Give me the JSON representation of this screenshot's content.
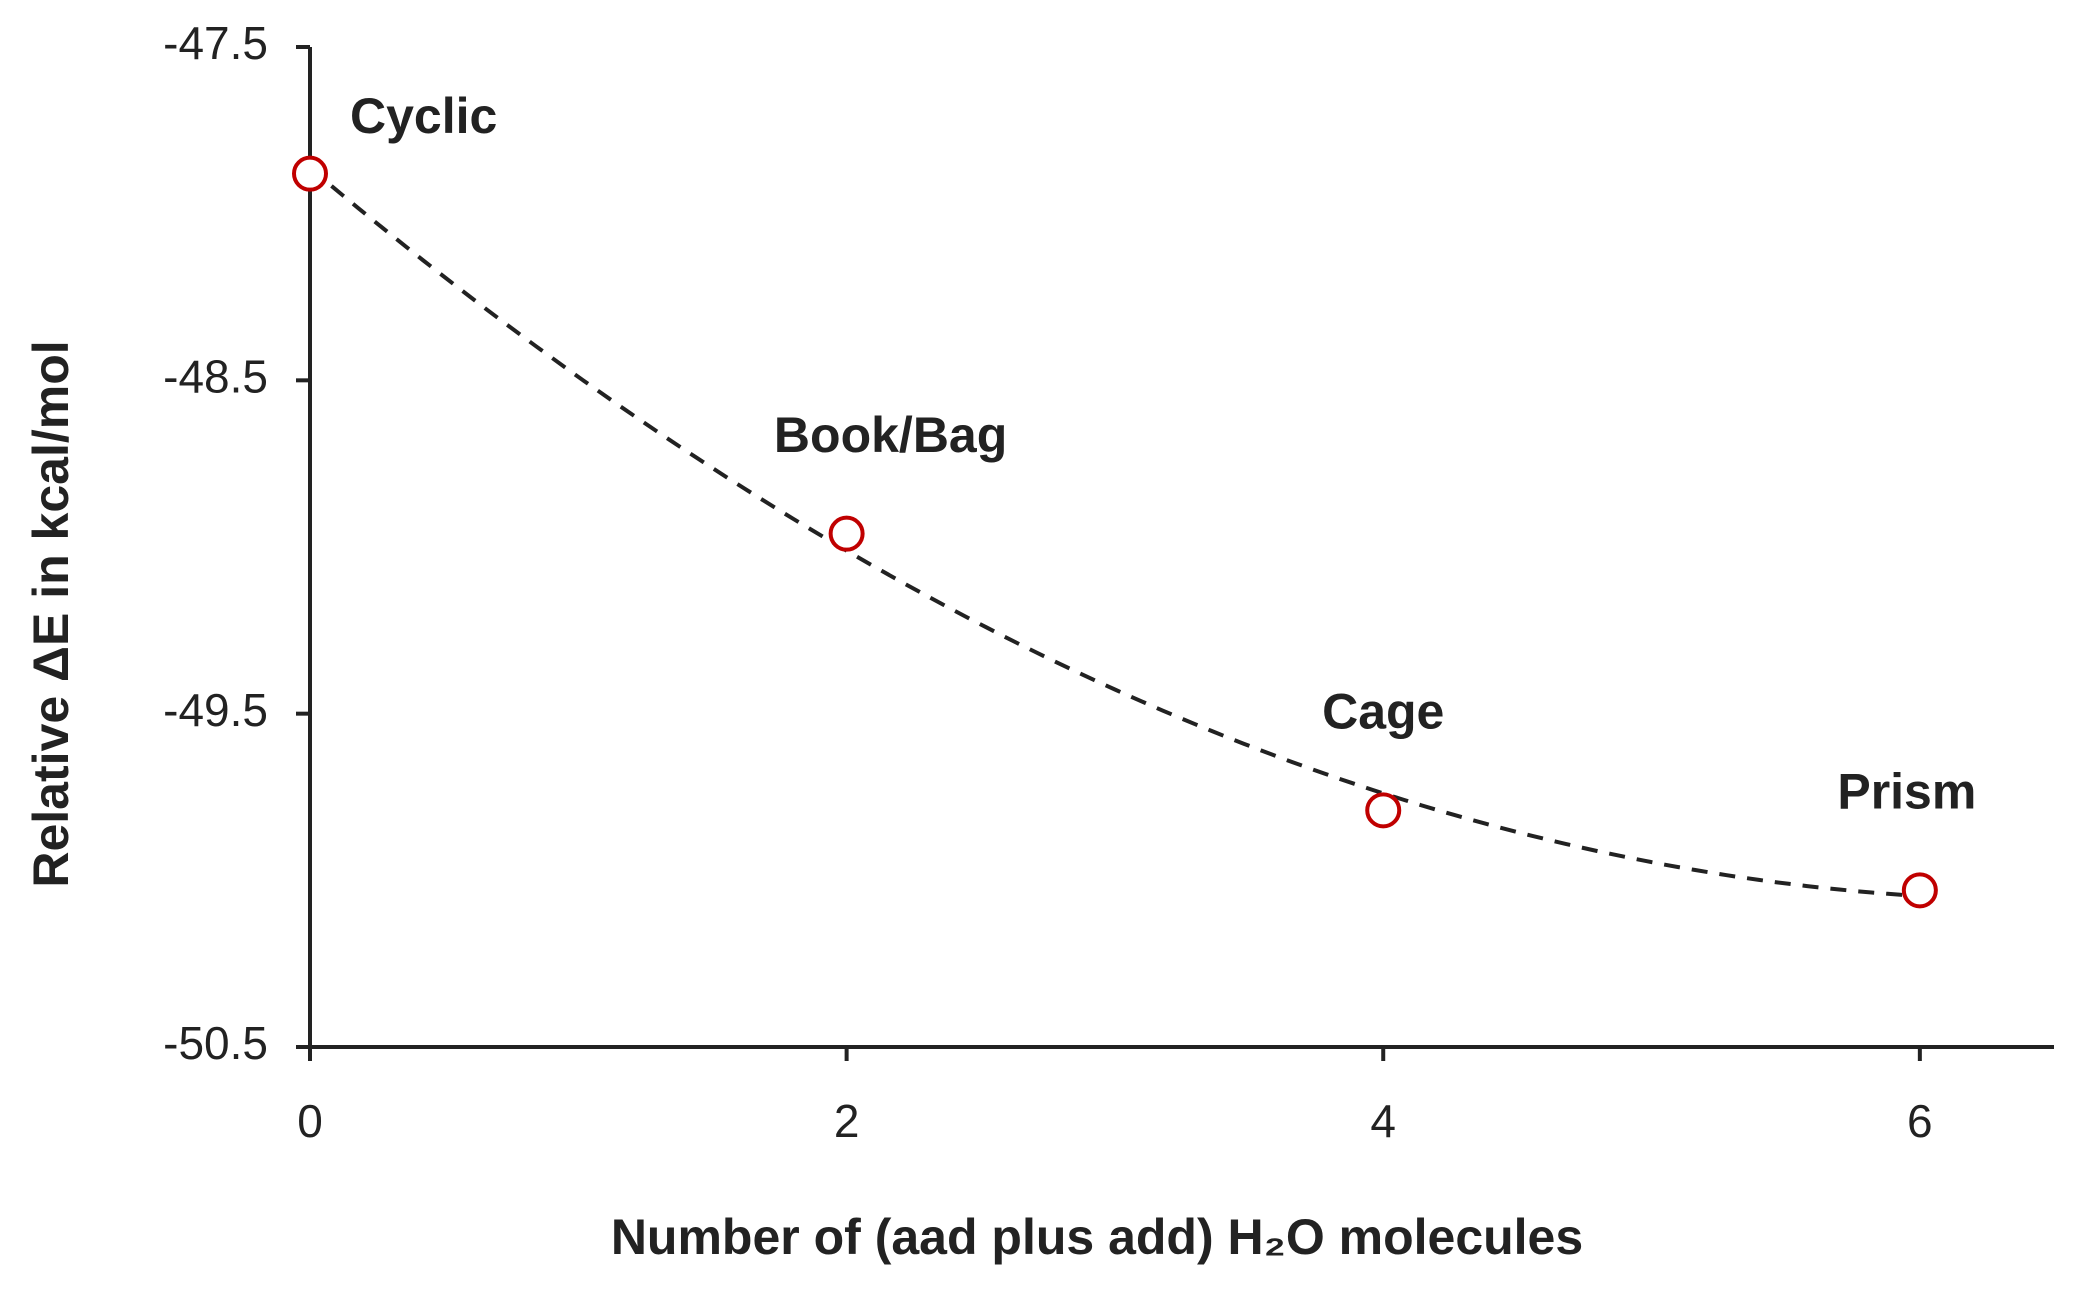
{
  "chart_data": {
    "type": "scatter",
    "x_label": "Number of (aad plus add) H₂O molecules",
    "y_label": "Relative ΔE  in kcal/mol",
    "x": [
      0,
      2,
      4,
      6
    ],
    "values": [
      -47.88,
      -48.96,
      -49.79,
      -50.03
    ],
    "point_labels": [
      "Cyclic",
      "Book/Bag",
      "Cage",
      "Prism"
    ],
    "color": "#c00000",
    "trendline": {
      "type": "polynomial",
      "order": 2,
      "color": "#222222"
    },
    "xlim": [
      0,
      6.5
    ],
    "xticks": [
      0,
      2,
      4,
      6
    ],
    "ylim": [
      -50.5,
      -47.5
    ],
    "yticks": [
      -47.5,
      -48.5,
      -49.5,
      -50.5
    ],
    "grid": false
  }
}
